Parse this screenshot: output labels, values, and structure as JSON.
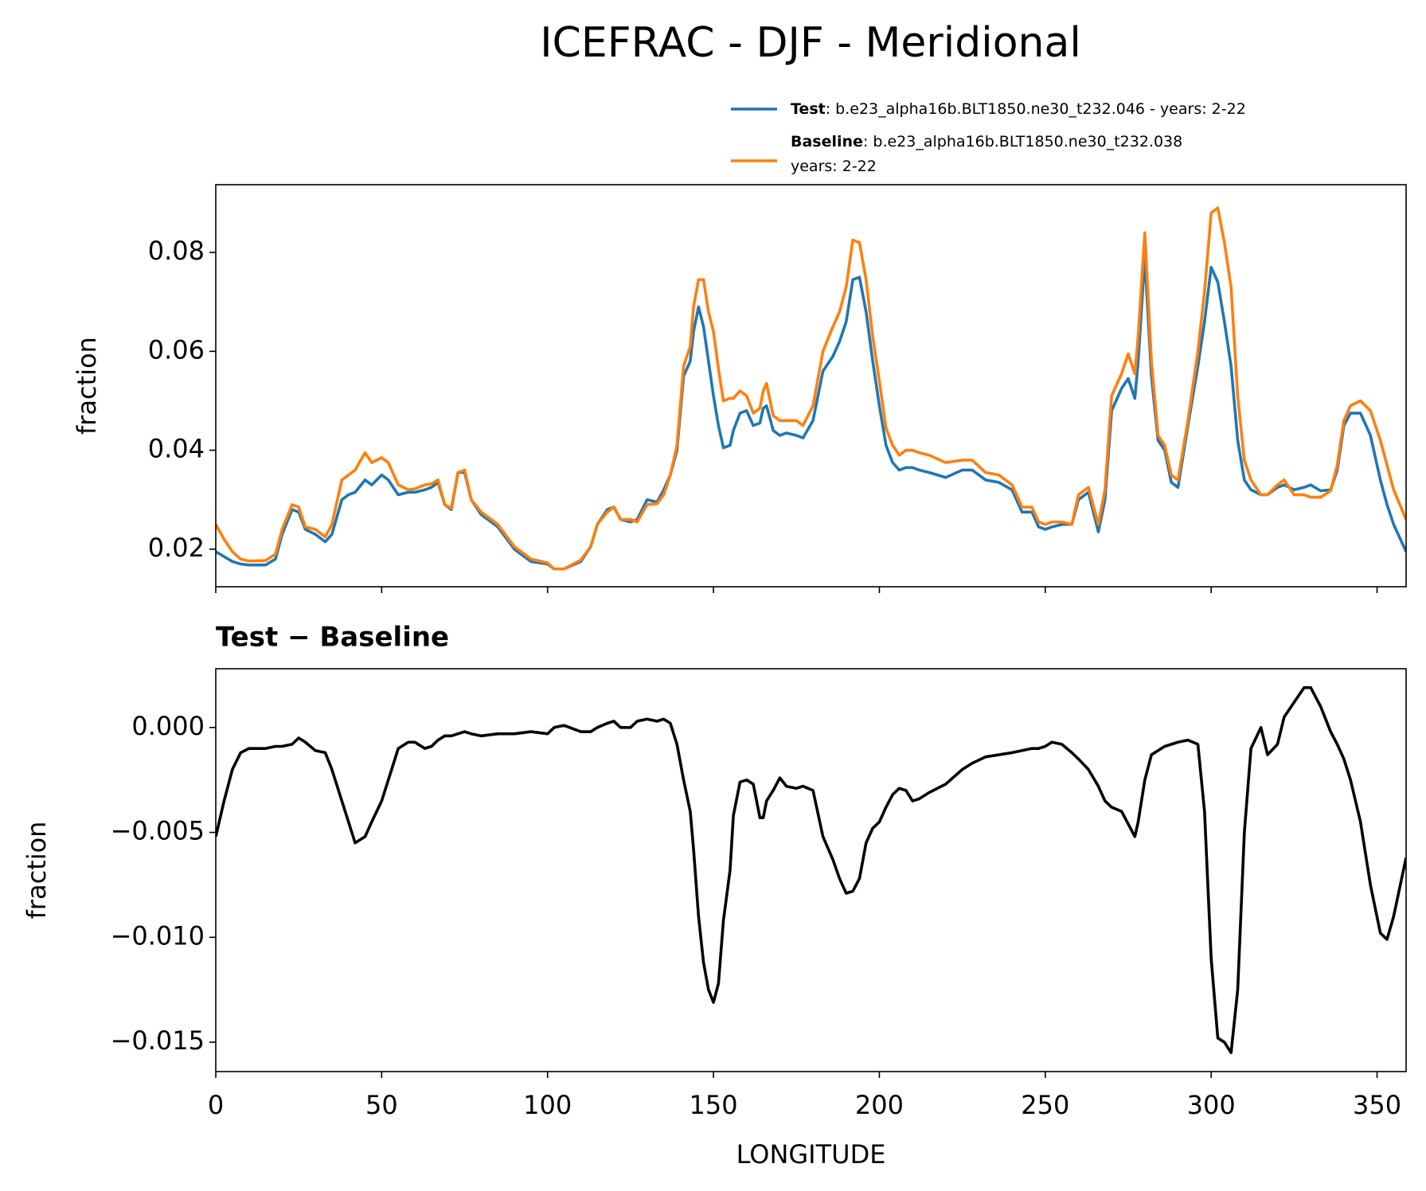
{
  "title": "ICEFRAC - DJF - Meridional",
  "chart_data": [
    {
      "type": "line",
      "ylabel": "fraction",
      "x": [
        0,
        2.5,
        5,
        7.5,
        10,
        15,
        18,
        20,
        23,
        25,
        27,
        30,
        33,
        35,
        38,
        40,
        42,
        45,
        47,
        50,
        52,
        55,
        58,
        60,
        63,
        65,
        67,
        69,
        71,
        73,
        75,
        77,
        80,
        85,
        90,
        95,
        100,
        102,
        105,
        110,
        113,
        115,
        118,
        120,
        122,
        125,
        127,
        130,
        133,
        135,
        137,
        139,
        141,
        143,
        144,
        145.5,
        147,
        148.5,
        150,
        151.5,
        153,
        155,
        156,
        158,
        160,
        162,
        164,
        165,
        166,
        168,
        170,
        172,
        175,
        177,
        180,
        183,
        186,
        188,
        190,
        192,
        194,
        196,
        198,
        200,
        202,
        204,
        206,
        208,
        210,
        212,
        215,
        220,
        225,
        228,
        232,
        236,
        240,
        243,
        246,
        248,
        250,
        252,
        255,
        258,
        260,
        263,
        266,
        268,
        270,
        273,
        275,
        277,
        278,
        280,
        282,
        284,
        286,
        288,
        290,
        293,
        296,
        298,
        300,
        302,
        304,
        306,
        308,
        310,
        312,
        315,
        317,
        320,
        322,
        325,
        328,
        330,
        333,
        336,
        338,
        340,
        342,
        345,
        348,
        351,
        353,
        355,
        358.75
      ],
      "series": [
        {
          "name": "Test",
          "label_lines": [
            ": b.e23_alpha16b.BLT1850.ne30_t232.046 - years: 2-22"
          ],
          "color": "#1f77b4",
          "values": [
            0.0195,
            0.0185,
            0.0175,
            0.017,
            0.0168,
            0.0168,
            0.018,
            0.023,
            0.028,
            0.0275,
            0.024,
            0.023,
            0.0215,
            0.023,
            0.03,
            0.031,
            0.0315,
            0.034,
            0.033,
            0.035,
            0.034,
            0.031,
            0.0315,
            0.0315,
            0.032,
            0.0325,
            0.0335,
            0.029,
            0.028,
            0.0355,
            0.0355,
            0.03,
            0.027,
            0.0245,
            0.02,
            0.0175,
            0.017,
            0.016,
            0.016,
            0.0175,
            0.0205,
            0.025,
            0.028,
            0.0285,
            0.026,
            0.0255,
            0.026,
            0.03,
            0.0295,
            0.032,
            0.035,
            0.04,
            0.055,
            0.058,
            0.064,
            0.069,
            0.065,
            0.058,
            0.051,
            0.045,
            0.0405,
            0.041,
            0.044,
            0.0475,
            0.048,
            0.045,
            0.0455,
            0.0485,
            0.049,
            0.044,
            0.043,
            0.0435,
            0.043,
            0.0425,
            0.046,
            0.056,
            0.059,
            0.062,
            0.066,
            0.0745,
            0.075,
            0.068,
            0.058,
            0.049,
            0.041,
            0.0375,
            0.036,
            0.0365,
            0.0365,
            0.036,
            0.0355,
            0.0345,
            0.036,
            0.036,
            0.034,
            0.0335,
            0.032,
            0.0275,
            0.0275,
            0.0245,
            0.024,
            0.0245,
            0.025,
            0.025,
            0.03,
            0.0315,
            0.0235,
            0.03,
            0.048,
            0.0525,
            0.0545,
            0.0505,
            0.058,
            0.079,
            0.055,
            0.042,
            0.04,
            0.0335,
            0.0325,
            0.045,
            0.057,
            0.066,
            0.077,
            0.074,
            0.066,
            0.057,
            0.042,
            0.034,
            0.032,
            0.031,
            0.031,
            0.0325,
            0.033,
            0.032,
            0.0325,
            0.033,
            0.0318,
            0.032,
            0.036,
            0.045,
            0.0475,
            0.0475,
            0.043,
            0.034,
            0.029,
            0.025,
            0.0195
          ]
        },
        {
          "name": "Baseline",
          "label_lines": [
            ": b.e23_alpha16b.BLT1850.ne30_t232.038",
            "years: 2-22"
          ],
          "color": "#ff7f0e",
          "values": [
            0.025,
            0.022,
            0.0195,
            0.018,
            0.0176,
            0.0177,
            0.019,
            0.024,
            0.029,
            0.0285,
            0.0245,
            0.024,
            0.0225,
            0.025,
            0.034,
            0.035,
            0.036,
            0.0395,
            0.0375,
            0.0385,
            0.0375,
            0.033,
            0.032,
            0.0322,
            0.033,
            0.0332,
            0.034,
            0.029,
            0.0283,
            0.0355,
            0.036,
            0.03,
            0.0275,
            0.025,
            0.0205,
            0.018,
            0.0172,
            0.016,
            0.016,
            0.0178,
            0.0205,
            0.025,
            0.0275,
            0.0285,
            0.026,
            0.026,
            0.0255,
            0.029,
            0.0292,
            0.031,
            0.035,
            0.041,
            0.057,
            0.061,
            0.069,
            0.0745,
            0.0745,
            0.068,
            0.064,
            0.0565,
            0.05,
            0.0505,
            0.0505,
            0.052,
            0.051,
            0.0475,
            0.0485,
            0.052,
            0.0535,
            0.047,
            0.046,
            0.046,
            0.046,
            0.045,
            0.049,
            0.06,
            0.065,
            0.068,
            0.073,
            0.0825,
            0.082,
            0.0745,
            0.063,
            0.054,
            0.0445,
            0.041,
            0.039,
            0.04,
            0.04,
            0.0395,
            0.039,
            0.0375,
            0.038,
            0.038,
            0.0355,
            0.035,
            0.033,
            0.0285,
            0.0285,
            0.0255,
            0.025,
            0.0255,
            0.0255,
            0.025,
            0.031,
            0.0325,
            0.025,
            0.032,
            0.051,
            0.0555,
            0.0595,
            0.0555,
            0.063,
            0.084,
            0.058,
            0.043,
            0.041,
            0.035,
            0.034,
            0.046,
            0.06,
            0.072,
            0.088,
            0.089,
            0.082,
            0.073,
            0.051,
            0.038,
            0.034,
            0.031,
            0.031,
            0.033,
            0.034,
            0.031,
            0.031,
            0.0305,
            0.0305,
            0.0318,
            0.037,
            0.046,
            0.049,
            0.05,
            0.048,
            0.042,
            0.037,
            0.032,
            0.026
          ]
        }
      ],
      "xlim": [
        0,
        358.75
      ],
      "ylim": [
        0.0124,
        0.0937
      ],
      "yticks": [
        0.02,
        0.04,
        0.06,
        0.08
      ],
      "legend": "upper right"
    },
    {
      "type": "line",
      "title": "Test − Baseline",
      "xlabel": "LONGITUDE",
      "ylabel": "fraction",
      "x": [
        0,
        2.5,
        5,
        7.5,
        10,
        15,
        18,
        20,
        23,
        25,
        27,
        30,
        33,
        35,
        38,
        40,
        42,
        45,
        47,
        50,
        52,
        55,
        58,
        60,
        63,
        65,
        67,
        69,
        71,
        73,
        75,
        77,
        80,
        85,
        90,
        95,
        100,
        102,
        105,
        110,
        113,
        115,
        118,
        120,
        122,
        125,
        127,
        130,
        133,
        135,
        137,
        139,
        141,
        143,
        144,
        145.5,
        147,
        148.5,
        150,
        151.5,
        153,
        155,
        156,
        158,
        160,
        162,
        164,
        165,
        166,
        168,
        170,
        172,
        175,
        177,
        180,
        183,
        186,
        188,
        190,
        192,
        194,
        196,
        198,
        200,
        202,
        204,
        206,
        208,
        210,
        212,
        215,
        220,
        225,
        228,
        232,
        236,
        240,
        243,
        246,
        248,
        250,
        252,
        255,
        258,
        260,
        263,
        266,
        268,
        270,
        273,
        275,
        277,
        278,
        280,
        282,
        284,
        286,
        288,
        290,
        293,
        296,
        298,
        300,
        302,
        304,
        306,
        308,
        310,
        312,
        315,
        317,
        320,
        322,
        325,
        328,
        330,
        333,
        336,
        338,
        340,
        342,
        345,
        348,
        351,
        353,
        355,
        358.75
      ],
      "series": [
        {
          "color": "#000000",
          "values": [
            -0.0052,
            -0.0035,
            -0.002,
            -0.0012,
            -0.001,
            -0.001,
            -0.0009,
            -0.0009,
            -0.0008,
            -0.0005,
            -0.0007,
            -0.0011,
            -0.0012,
            -0.002,
            -0.0035,
            -0.0045,
            -0.0055,
            -0.0052,
            -0.0045,
            -0.0035,
            -0.0025,
            -0.001,
            -0.0007,
            -0.0007,
            -0.001,
            -0.0009,
            -0.0006,
            -0.0004,
            -0.0004,
            -0.0003,
            -0.0002,
            -0.0003,
            -0.0004,
            -0.0003,
            -0.0003,
            -0.0002,
            -0.0003,
            0,
            0.0001,
            -0.0002,
            -0.0002,
            0,
            0.0002,
            0.0003,
            0,
            0,
            0.0003,
            0.0004,
            0.0003,
            0.0004,
            0.0002,
            -0.0008,
            -0.0025,
            -0.004,
            -0.0058,
            -0.009,
            -0.0112,
            -0.0125,
            -0.0131,
            -0.0122,
            -0.0092,
            -0.0068,
            -0.0042,
            -0.0026,
            -0.0025,
            -0.0027,
            -0.0043,
            -0.0043,
            -0.0035,
            -0.003,
            -0.0024,
            -0.0028,
            -0.0029,
            -0.0028,
            -0.003,
            -0.0052,
            -0.0063,
            -0.0072,
            -0.0079,
            -0.0078,
            -0.0072,
            -0.0055,
            -0.0048,
            -0.0045,
            -0.0038,
            -0.0032,
            -0.0029,
            -0.003,
            -0.0035,
            -0.0034,
            -0.0031,
            -0.0027,
            -0.002,
            -0.0017,
            -0.0014,
            -0.0013,
            -0.0012,
            -0.0011,
            -0.001,
            -0.001,
            -0.0009,
            -0.0007,
            -0.0008,
            -0.0012,
            -0.0015,
            -0.002,
            -0.0028,
            -0.0035,
            -0.0038,
            -0.004,
            -0.0046,
            -0.0052,
            -0.0045,
            -0.0025,
            -0.0013,
            -0.0011,
            -0.0009,
            -0.0008,
            -0.0007,
            -0.0006,
            -0.0008,
            -0.004,
            -0.011,
            -0.0148,
            -0.015,
            -0.0155,
            -0.0125,
            -0.005,
            -0.001,
            0,
            -0.0013,
            -0.0008,
            0.0005,
            0.0012,
            0.0019,
            0.0019,
            0.001,
            -0.0002,
            -0.0008,
            -0.0015,
            -0.0025,
            -0.0045,
            -0.0075,
            -0.0098,
            -0.0101,
            -0.009,
            -0.0062
          ]
        }
      ],
      "xlim": [
        0,
        358.75
      ],
      "xticks": [
        0,
        50,
        100,
        150,
        200,
        250,
        300,
        350
      ],
      "ylim": [
        -0.0164,
        0.0028
      ],
      "yticks": [
        {
          "value": 0,
          "label": "0.000"
        },
        {
          "value": -0.005,
          "label": "−0.005"
        },
        {
          "value": -0.01,
          "label": "−0.010"
        },
        {
          "value": -0.015,
          "label": "−0.015"
        }
      ]
    }
  ]
}
